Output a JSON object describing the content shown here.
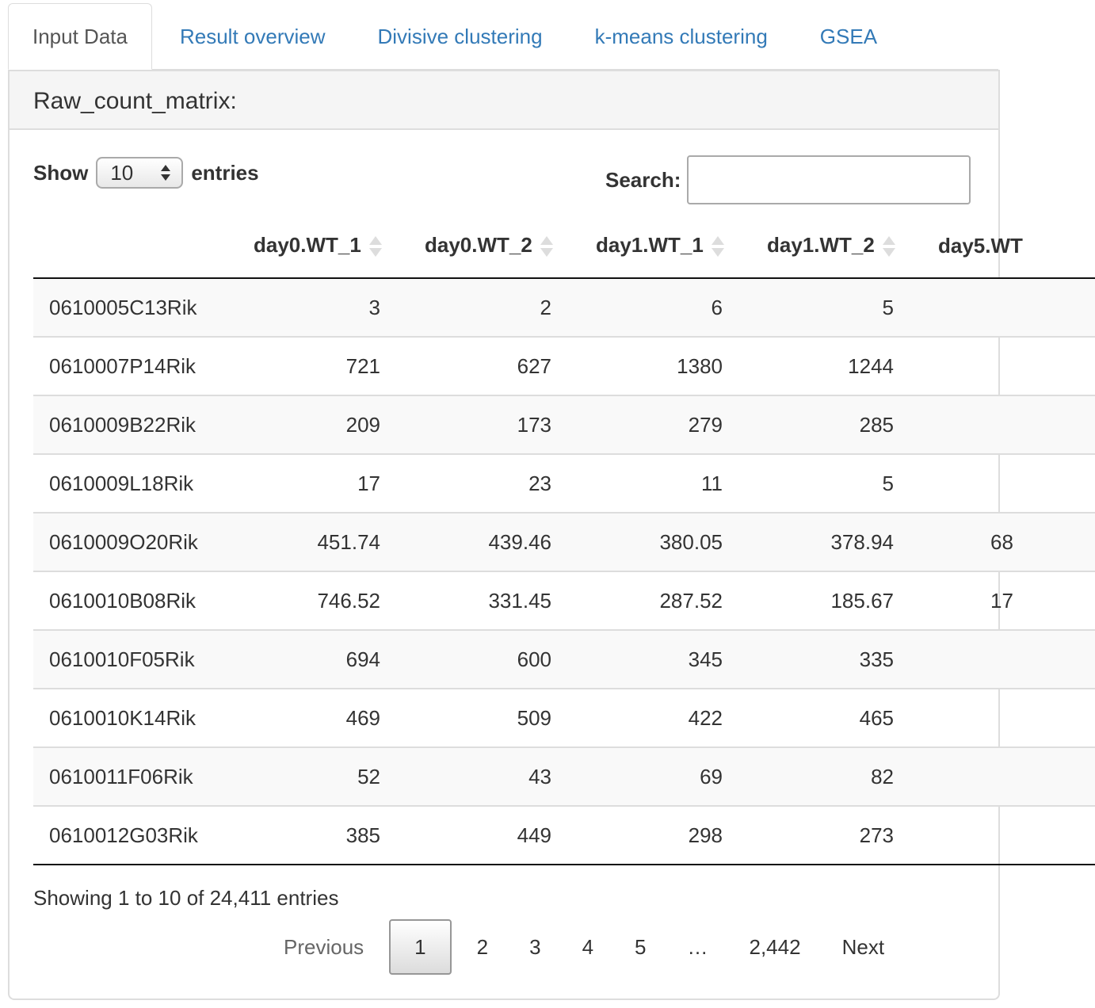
{
  "tabs": [
    "Input Data",
    "Result overview",
    "Divisive clustering",
    "k-means clustering",
    "GSEA"
  ],
  "panel_title": "Raw_count_matrix:",
  "length_menu": {
    "label_before": "Show",
    "value": "10",
    "label_after": "entries"
  },
  "search_label": "Search:",
  "table": {
    "columns": [
      "day0.WT_1",
      "day0.WT_2",
      "day1.WT_1",
      "day1.WT_2",
      "day5.WT"
    ],
    "rows": [
      {
        "name": "0610005C13Rik",
        "values": [
          "3",
          "2",
          "6",
          "5",
          null
        ]
      },
      {
        "name": "0610007P14Rik",
        "values": [
          "721",
          "627",
          "1380",
          "1244",
          null
        ]
      },
      {
        "name": "0610009B22Rik",
        "values": [
          "209",
          "173",
          "279",
          "285",
          null
        ]
      },
      {
        "name": "0610009L18Rik",
        "values": [
          "17",
          "23",
          "11",
          "5",
          null
        ]
      },
      {
        "name": "0610009O20Rik",
        "values": [
          "451.74",
          "439.46",
          "380.05",
          "378.94",
          "68"
        ]
      },
      {
        "name": "0610010B08Rik",
        "values": [
          "746.52",
          "331.45",
          "287.52",
          "185.67",
          "17"
        ]
      },
      {
        "name": "0610010F05Rik",
        "values": [
          "694",
          "600",
          "345",
          "335",
          null
        ]
      },
      {
        "name": "0610010K14Rik",
        "values": [
          "469",
          "509",
          "422",
          "465",
          null
        ]
      },
      {
        "name": "0610011F06Rik",
        "values": [
          "52",
          "43",
          "69",
          "82",
          null
        ]
      },
      {
        "name": "0610012G03Rik",
        "values": [
          "385",
          "449",
          "298",
          "273",
          null
        ]
      }
    ]
  },
  "info": "Showing 1 to 10 of 24,411 entries",
  "pagination": {
    "previous": "Previous",
    "pages": [
      "1",
      "2",
      "3",
      "4",
      "5",
      "…",
      "2,442"
    ],
    "next": "Next"
  }
}
